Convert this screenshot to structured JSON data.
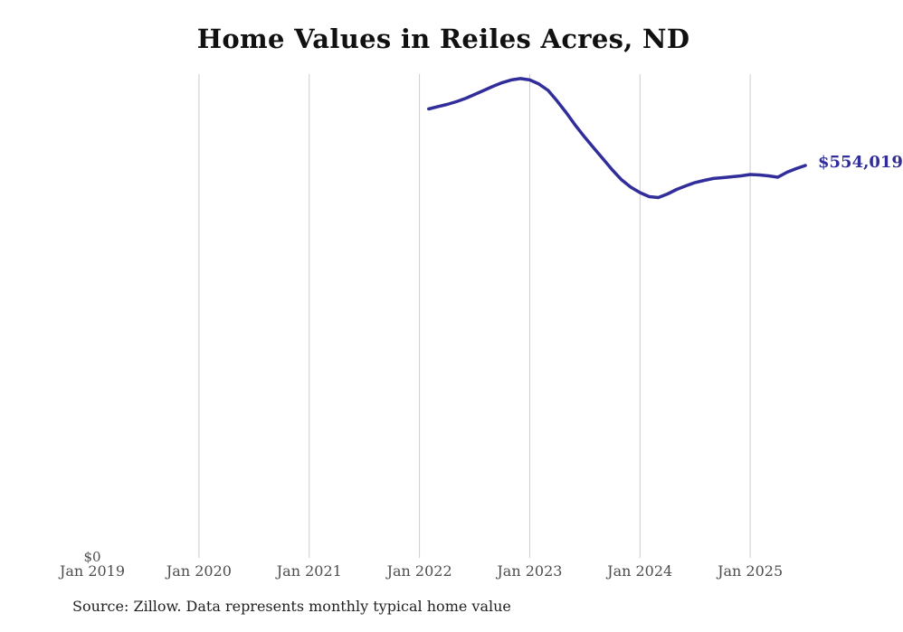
{
  "title": "Home Values in Reiles Acres, ND",
  "source_note": "Source: Zillow. Data represents monthly typical home value",
  "colors": {
    "line": "#312d9b",
    "grid": "#cccccc",
    "tick_text": "#4d4d4d",
    "title_text": "#111111",
    "source_text": "#222222"
  },
  "chart_data": {
    "type": "line",
    "title": "Home Values in Reiles Acres, ND",
    "series_name": "Monthly typical home value",
    "unit": "USD",
    "xlabel": "",
    "ylabel": "",
    "ylim": [
      0,
      682000
    ],
    "grid": "vertical-year-gridlines",
    "legend": "none",
    "x_ticks": [
      "Jan 2019",
      "Jan 2020",
      "Jan 2021",
      "Jan 2022",
      "Jan 2023",
      "Jan 2024",
      "Jan 2025"
    ],
    "y_zero_label": "$0",
    "latest_value_label": "$554,019",
    "latest_value": 554019,
    "months": [
      "Jan 2022",
      "Feb 2022",
      "Mar 2022",
      "Apr 2022",
      "May 2022",
      "Jun 2022",
      "Jul 2022",
      "Aug 2022",
      "Sep 2022",
      "Oct 2022",
      "Nov 2022",
      "Dec 2022",
      "Jan 2023",
      "Feb 2023",
      "Mar 2023",
      "Apr 2023",
      "May 2023",
      "Jun 2023",
      "Jul 2023",
      "Aug 2023",
      "Sep 2023",
      "Oct 2023",
      "Nov 2023",
      "Dec 2023",
      "Jan 2024",
      "Feb 2024",
      "Mar 2024",
      "Apr 2024",
      "May 2024",
      "Jun 2024",
      "Jul 2024",
      "Aug 2024",
      "Sep 2024",
      "Oct 2024",
      "Nov 2024",
      "Dec 2024",
      "Jan 2025",
      "Feb 2025",
      "Mar 2025",
      "Apr 2025",
      "May 2025",
      "Jun 2025"
    ],
    "values": [
      633300,
      636500,
      639600,
      643400,
      647900,
      653600,
      659300,
      665000,
      670100,
      673900,
      675800,
      673900,
      668200,
      659300,
      644100,
      627600,
      609800,
      593400,
      578100,
      562900,
      547700,
      533800,
      523600,
      516000,
      510300,
      509000,
      514100,
      520400,
      525500,
      530000,
      533100,
      535700,
      536900,
      538200,
      539500,
      541400,
      540700,
      539500,
      537600,
      544500,
      549600,
      554019
    ]
  }
}
